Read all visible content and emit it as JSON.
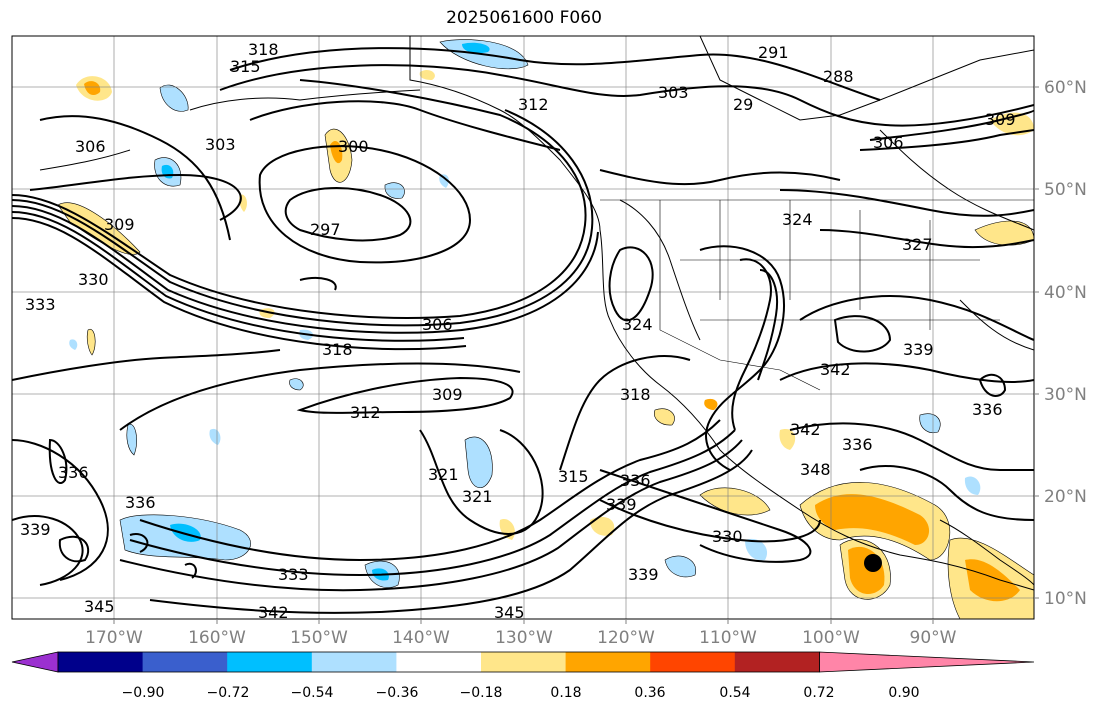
{
  "title": "2025061600 F060",
  "lon_labels": [
    "170°W",
    "160°W",
    "150°W",
    "140°W",
    "130°W",
    "120°W",
    "110°W",
    "100°W",
    "90°W"
  ],
  "lat_labels": [
    "60°N",
    "50°N",
    "40°N",
    "30°N",
    "20°N",
    "10°N"
  ],
  "colorbar": {
    "ticks": [
      "−0.90",
      "−0.72",
      "−0.54",
      "−0.36",
      "−0.18",
      "0.18",
      "0.36",
      "0.54",
      "0.72",
      "0.90"
    ],
    "colors": [
      "#9b30d0",
      "#00008b",
      "#3a5fcd",
      "#00bfff",
      "#aee0ff",
      "#ffffff",
      "#ffe68a",
      "#ffa500",
      "#ff4500",
      "#b22222",
      "#ff85a8"
    ]
  },
  "contour_labels": [
    "318",
    "315",
    "303",
    "312",
    "291",
    "288",
    "29",
    "306",
    "303",
    "300",
    "306",
    "309",
    "297",
    "309",
    "324",
    "327",
    "333",
    "330",
    "306",
    "318",
    "324",
    "339",
    "342",
    "309",
    "312",
    "318",
    "336",
    "336",
    "321",
    "321",
    "315",
    "336",
    "339",
    "342",
    "348",
    "336",
    "336",
    "339",
    "333",
    "330",
    "339",
    "345",
    "342",
    "345"
  ],
  "colors": {
    "contour": "#000000",
    "grid": "#808080",
    "land": "#000000"
  }
}
